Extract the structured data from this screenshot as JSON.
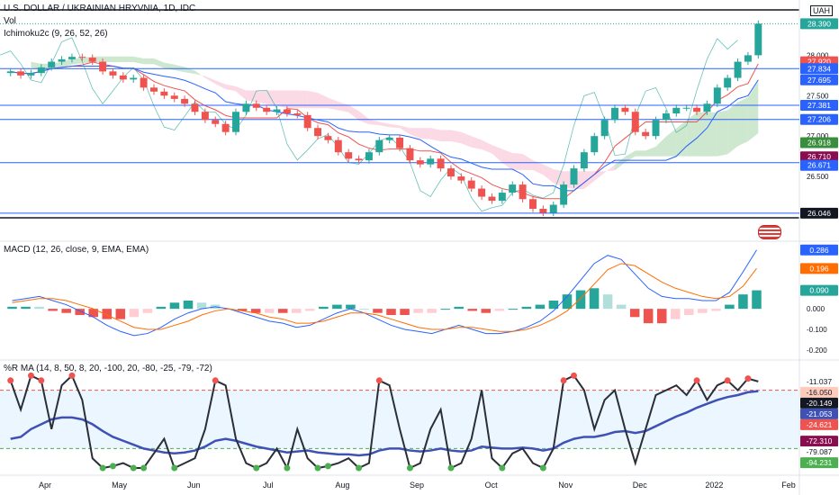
{
  "header": {
    "title": "U.S. DOLLAR / UKRAINIAN HRYVNIA, 1D, IDC",
    "vol": "Vol",
    "ichimoku": "Ichimoku2c (9, 26, 52, 26)",
    "currency_badge": "UAH"
  },
  "macd_label": "MACD (12, 26, close, 9, EMA, EMA)",
  "wr_label": "%R MA (14, 8, 50, 8, 20, -100, 20, -80, -25, -79, -72)",
  "colors": {
    "up": "#26a69a",
    "down": "#ef5350",
    "hline": "#2962ff",
    "cloud_up": "#a5d6a7",
    "cloud_down": "#f8bbd0",
    "macd": "#2962ff",
    "signal": "#ff6d00",
    "wr": "#2a2e39",
    "wr_ma_slow": "#3f51b5",
    "wr_band": "#e3f2fd"
  },
  "x_axis": {
    "labels": [
      "Apr",
      "May",
      "Jun",
      "Jul",
      "Aug",
      "Sep",
      "Oct",
      "Nov",
      "Dec",
      "2022",
      "Feb"
    ]
  },
  "price_axis": {
    "ticks": [
      "28.000",
      "27.500",
      "27.000",
      "26.500"
    ],
    "tags": [
      {
        "text": "28.390",
        "bg": "#26a69a",
        "fg": "#ffffff"
      },
      {
        "text": "27.920",
        "bg": "#ef5350",
        "fg": "#ffffff"
      },
      {
        "text": "27.834",
        "bg": "#2962ff",
        "fg": "#ffffff"
      },
      {
        "text": "27.695",
        "bg": "#2962ff",
        "fg": "#ffffff"
      },
      {
        "text": "27.381",
        "bg": "#2962ff",
        "fg": "#ffffff"
      },
      {
        "text": "27.206",
        "bg": "#2962ff",
        "fg": "#ffffff"
      },
      {
        "text": "26.918",
        "bg": "#388e3c",
        "fg": "#ffffff"
      },
      {
        "text": "26.710",
        "bg": "#880e4f",
        "fg": "#ffffff"
      },
      {
        "text": "26.671",
        "bg": "#2962ff",
        "fg": "#ffffff"
      },
      {
        "text": "26.046",
        "bg": "#131722",
        "fg": "#ffffff"
      }
    ]
  },
  "macd_axis": {
    "ticks": [
      "0.000",
      "-0.100",
      "-0.200"
    ],
    "tags": [
      {
        "text": "0.286",
        "bg": "#2962ff",
        "fg": "#ffffff"
      },
      {
        "text": "0.196",
        "bg": "#ff6d00",
        "fg": "#ffffff"
      },
      {
        "text": "0.090",
        "bg": "#26a69a",
        "fg": "#ffffff"
      }
    ]
  },
  "wr_axis": {
    "tags": [
      {
        "text": "-11.037",
        "bg": "#ffffff",
        "fg": "#131722"
      },
      {
        "text": "-16.050",
        "bg": "#ffccbc",
        "fg": "#131722"
      },
      {
        "text": "-20.149",
        "bg": "#131722",
        "fg": "#ffffff"
      },
      {
        "text": "-21.053",
        "bg": "#3f51b5",
        "fg": "#ffffff"
      },
      {
        "text": "-24.621",
        "bg": "#ef5350",
        "fg": "#ffffff"
      },
      {
        "text": "-72.310",
        "bg": "#880e4f",
        "fg": "#ffffff"
      },
      {
        "text": "-79.087",
        "bg": "#ffffff",
        "fg": "#131722"
      },
      {
        "text": "-94.231",
        "bg": "#4caf50",
        "fg": "#ffffff"
      }
    ]
  },
  "chart_data": [
    {
      "type": "candlestick",
      "title": "U.S. DOLLAR / UKRAINIAN HRYVNIA, 1D, IDC",
      "series": [
        {
          "name": "close",
          "values": [
            27.8,
            27.75,
            27.78,
            27.85,
            27.92,
            27.95,
            27.98,
            27.97,
            27.92,
            27.8,
            27.75,
            27.7,
            27.72,
            27.6,
            27.55,
            27.5,
            27.46,
            27.4,
            27.3,
            27.2,
            27.15,
            27.05,
            27.3,
            27.4,
            27.35,
            27.3,
            27.33,
            27.28,
            27.26,
            27.1,
            27.0,
            26.95,
            26.8,
            26.72,
            26.7,
            26.8,
            26.95,
            26.98,
            26.85,
            26.7,
            26.65,
            26.72,
            26.6,
            26.5,
            26.45,
            26.35,
            26.25,
            26.2,
            26.3,
            26.4,
            26.22,
            26.1,
            26.05,
            26.15,
            26.4,
            26.6,
            26.8,
            27.0,
            27.2,
            27.35,
            27.3,
            27.05,
            27.0,
            27.2,
            27.28,
            27.35,
            27.35,
            27.3,
            27.4,
            27.6,
            27.72,
            27.92,
            28.0,
            28.39
          ]
        }
      ],
      "overlays": [
        "Ichimoku2c (9, 26, 52, 26)"
      ],
      "horizontal_levels": [
        27.834,
        27.381,
        27.206,
        26.671,
        26.046
      ],
      "ylim": [
        26.0,
        28.55
      ]
    },
    {
      "type": "macd",
      "title": "MACD (12, 26, close, 9, EMA, EMA)",
      "series": [
        {
          "name": "macd",
          "values": [
            0.04,
            0.05,
            0.06,
            0.04,
            0.02,
            -0.01,
            -0.04,
            -0.08,
            -0.11,
            -0.13,
            -0.12,
            -0.09,
            -0.05,
            -0.02,
            0.0,
            0.01,
            0.0,
            -0.02,
            -0.04,
            -0.06,
            -0.07,
            -0.09,
            -0.08,
            -0.05,
            -0.02,
            0.0,
            -0.02,
            -0.05,
            -0.08,
            -0.1,
            -0.11,
            -0.12,
            -0.1,
            -0.08,
            -0.1,
            -0.12,
            -0.12,
            -0.11,
            -0.09,
            -0.06,
            -0.01,
            0.06,
            0.14,
            0.22,
            0.26,
            0.24,
            0.17,
            0.1,
            0.06,
            0.05,
            0.05,
            0.04,
            0.04,
            0.08,
            0.18,
            0.286
          ]
        },
        {
          "name": "signal",
          "values": [
            0.03,
            0.04,
            0.05,
            0.05,
            0.04,
            0.02,
            0.0,
            -0.03,
            -0.06,
            -0.09,
            -0.1,
            -0.1,
            -0.08,
            -0.06,
            -0.03,
            -0.01,
            0.0,
            -0.01,
            -0.02,
            -0.04,
            -0.05,
            -0.07,
            -0.07,
            -0.06,
            -0.04,
            -0.02,
            -0.02,
            -0.03,
            -0.05,
            -0.07,
            -0.09,
            -0.1,
            -0.1,
            -0.09,
            -0.09,
            -0.1,
            -0.11,
            -0.11,
            -0.1,
            -0.08,
            -0.05,
            -0.01,
            0.05,
            0.12,
            0.19,
            0.22,
            0.21,
            0.17,
            0.13,
            0.1,
            0.08,
            0.06,
            0.05,
            0.06,
            0.11,
            0.196
          ]
        }
      ],
      "ylim": [
        -0.24,
        0.32
      ]
    },
    {
      "type": "line",
      "title": "%R MA (14, 8, 50, 8, 20, -100, 20, -80, -25, -79, -72)",
      "series": [
        {
          "name": "%R",
          "values": [
            -10,
            -40,
            -5,
            -10,
            -60,
            -15,
            -5,
            -30,
            -90,
            -100,
            -98,
            -95,
            -100,
            -100,
            -85,
            -70,
            -100,
            -95,
            -90,
            -60,
            -10,
            -15,
            -70,
            -95,
            -100,
            -95,
            -80,
            -100,
            -60,
            -90,
            -100,
            -98,
            -95,
            -90,
            -100,
            -95,
            -10,
            -15,
            -60,
            -100,
            -95,
            -60,
            -40,
            -100,
            -95,
            -70,
            -20,
            -90,
            -100,
            -85,
            -80,
            -95,
            -100,
            -80,
            -10,
            -5,
            -20,
            -60,
            -30,
            -20,
            -60,
            -95,
            -60,
            -25,
            -20,
            -15,
            -25,
            -10,
            -30,
            -15,
            -10,
            -20,
            -8,
            -11
          ]
        },
        {
          "name": "%R slow MA",
          "values": [
            -70,
            -68,
            -60,
            -55,
            -50,
            -48,
            -48,
            -50,
            -55,
            -62,
            -68,
            -72,
            -76,
            -80,
            -82,
            -84,
            -85,
            -84,
            -82,
            -78,
            -72,
            -70,
            -72,
            -75,
            -78,
            -80,
            -82,
            -84,
            -83,
            -82,
            -84,
            -85,
            -86,
            -86,
            -87,
            -86,
            -82,
            -80,
            -80,
            -82,
            -83,
            -82,
            -80,
            -82,
            -83,
            -82,
            -78,
            -79,
            -80,
            -80,
            -79,
            -80,
            -82,
            -80,
            -74,
            -70,
            -68,
            -68,
            -66,
            -63,
            -62,
            -64,
            -62,
            -57,
            -52,
            -47,
            -43,
            -38,
            -34,
            -30,
            -27,
            -25,
            -22,
            -21
          ]
        }
      ],
      "levels": [
        -20,
        -80
      ],
      "ylim": [
        -100,
        0
      ]
    }
  ]
}
